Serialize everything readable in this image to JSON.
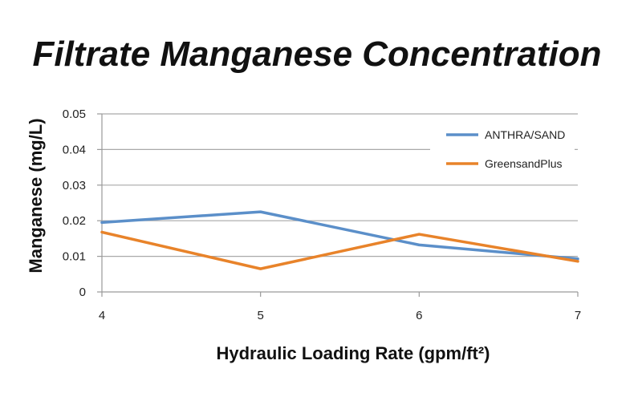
{
  "chart_data": {
    "type": "line",
    "title": "Filtrate Manganese Concentration",
    "xlabel": "Hydraulic Loading Rate (gpm/ft²)",
    "ylabel": "Manganese (mg/L)",
    "x": [
      4,
      5,
      6,
      7
    ],
    "x_tick_labels": [
      "4",
      "5",
      "6",
      "7"
    ],
    "y_tick_labels": [
      "0",
      "0.01",
      "0.02",
      "0.03",
      "0.04",
      "0.05"
    ],
    "xlim": [
      4,
      7
    ],
    "ylim": [
      0,
      0.05
    ],
    "grid": "horizontal",
    "legend_position": "top-right",
    "series": [
      {
        "name": "ANTHRA/SAND",
        "color": "#5b8fc9",
        "values": [
          0.0195,
          0.0225,
          0.0132,
          0.0093
        ]
      },
      {
        "name": "GreensandPlus",
        "color": "#e8832a",
        "values": [
          0.0168,
          0.0065,
          0.0162,
          0.0086
        ]
      }
    ]
  }
}
